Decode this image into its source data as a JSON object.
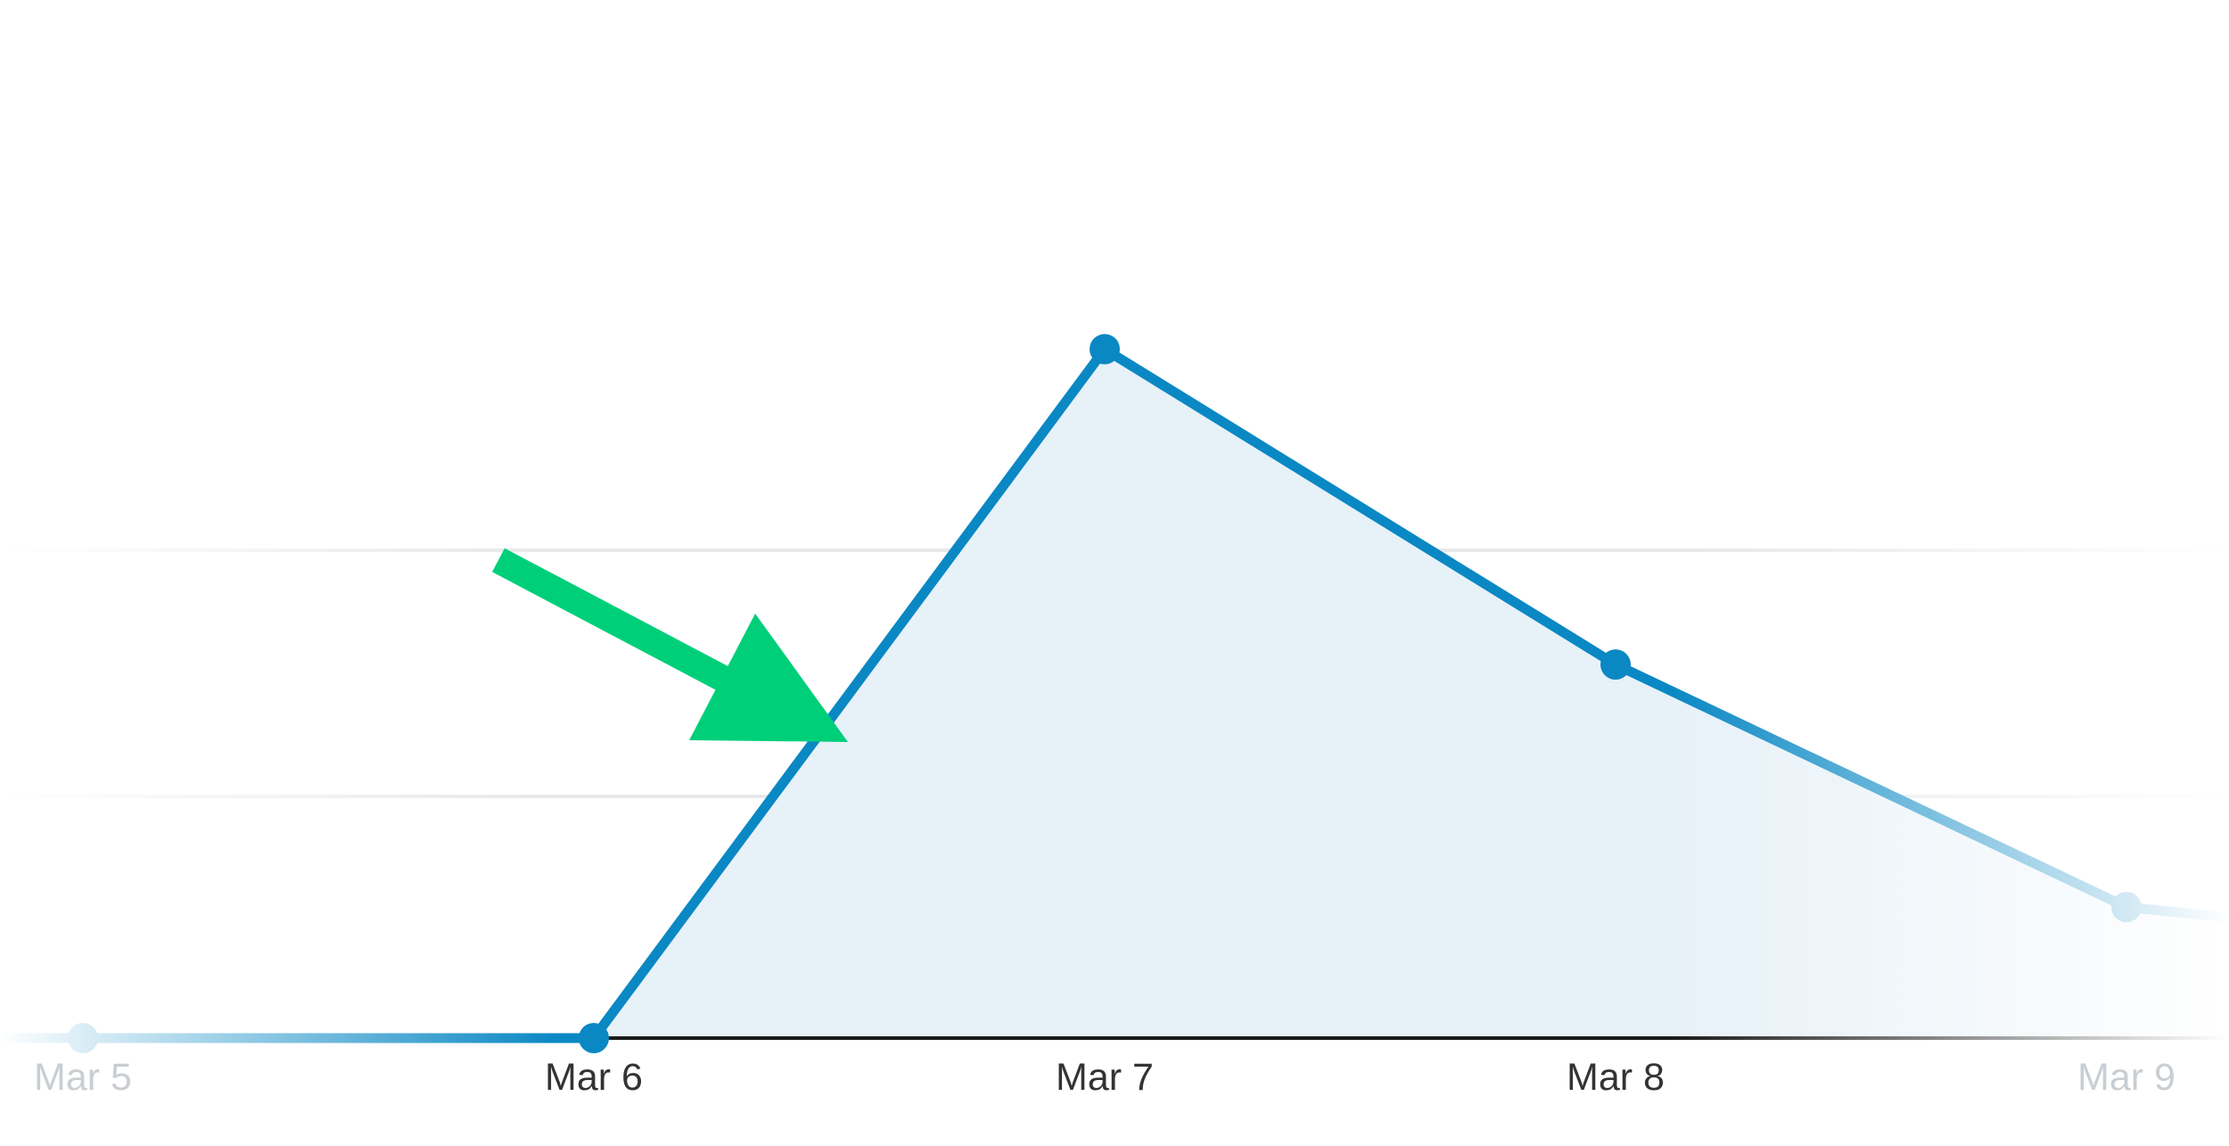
{
  "colors": {
    "line": "#0a88c4",
    "area_fill": "#e7f1f8",
    "gridline": "#e6e8ea",
    "baseline": "#1a1a1a",
    "tick_text": "#333333",
    "tick_text_faded": "#c9ced3",
    "arrow": "#00cf7a",
    "background": "#ffffff"
  },
  "annotation": {
    "icon": "arrow-pointing-down-right-icon"
  },
  "chart_data": {
    "type": "area",
    "x": [
      "Mar 5",
      "Mar 6",
      "Mar 7",
      "Mar 8",
      "Mar 9"
    ],
    "values": [
      0,
      0,
      1.42,
      0.77,
      0.27
    ],
    "tick_labels": [
      "Mar 5",
      "Mar 6",
      "Mar 7",
      "Mar 8",
      "Mar 9"
    ],
    "y_gridlines": [
      1,
      2
    ],
    "ylim": [
      0,
      2
    ],
    "grid": true,
    "edges_faded": true,
    "title": "",
    "xlabel": "",
    "ylabel": ""
  }
}
